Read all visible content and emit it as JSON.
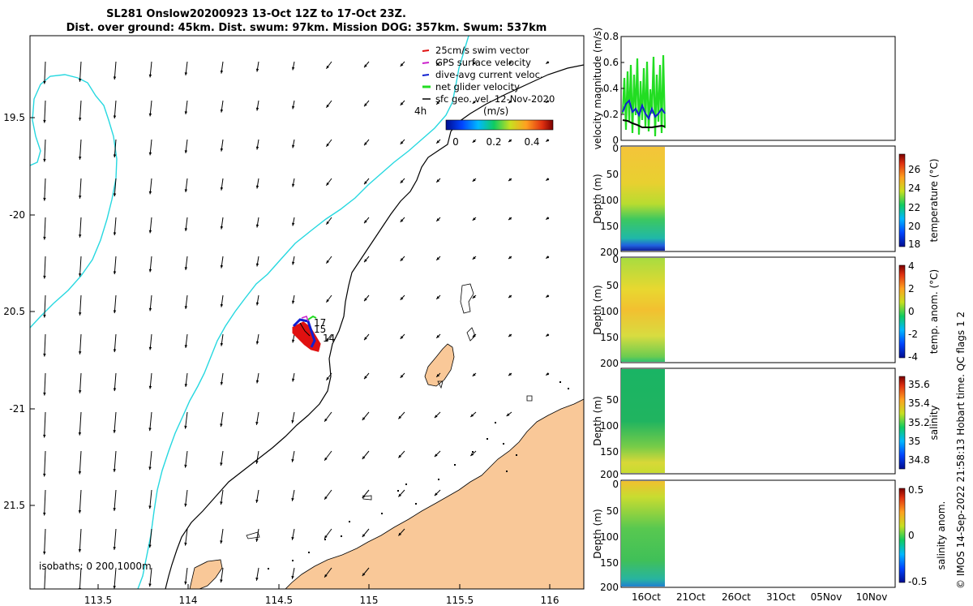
{
  "title": {
    "line1": "SL281 Onslow20200923 13-Oct 12Z to 17-Oct 23Z.",
    "line2": "Dist. over ground: 45km. Dist. swum: 97km. Mission DOG: 357km. Swum: 537km"
  },
  "colors": {
    "land": "#f9c898",
    "isobath0": "#26d8e0",
    "isobath200": "#000000",
    "track_swim": "#e01010",
    "track_gps": "#cc22cc",
    "track_dac": "#1020d0",
    "track_net": "#22dd22",
    "geo_vector": "#000000"
  },
  "map": {
    "lon_ticks": [
      "113.5",
      "114",
      "114.5",
      "115",
      "115.5",
      "116"
    ],
    "lat_ticks": [
      "19.5",
      "-20",
      "20.5",
      "-21",
      "21.5"
    ],
    "legend": [
      {
        "label": "25cm/s swim vector",
        "color": "#e01010"
      },
      {
        "label": "GPS surface velocity",
        "color": "#cc22cc"
      },
      {
        "label": "dive-avg current veloc.",
        "color": "#1020d0"
      },
      {
        "label": "net glider velocity",
        "color": "#22dd22"
      },
      {
        "label": "sfc geo. vel. 12-Nov-2020",
        "color": "#000000"
      }
    ],
    "colorbar": {
      "label": "(m/s)",
      "ticks": [
        "0",
        "0.2",
        "0.4"
      ]
    },
    "interval_label": "4h",
    "isobath_label": "isobaths: 0   200   1000m",
    "track_labels": [
      "17",
      "15",
      "14"
    ]
  },
  "chart_data": [
    {
      "type": "line",
      "title": "",
      "ylabel": "velocity magnitude (m/s)",
      "ylim": [
        0,
        0.8
      ],
      "yticks": [
        "0",
        "0.2",
        "0.4",
        "0.6",
        "0.8"
      ],
      "series": [
        {
          "name": "net glider velocity",
          "color": "#22dd22"
        },
        {
          "name": "dive-avg current veloc.",
          "color": "#1020d0"
        },
        {
          "name": "sfc geo. vel.",
          "color": "#000000"
        }
      ]
    },
    {
      "type": "heatmap",
      "ylabel": "Depth (m)",
      "yticks": [
        "0",
        "50",
        "100",
        "150",
        "200"
      ],
      "colorbar_label": "temperature (°C)",
      "colorbar_ticks": [
        "18",
        "20",
        "22",
        "24",
        "26"
      ],
      "clim": [
        17.5,
        28
      ]
    },
    {
      "type": "heatmap",
      "ylabel": "Depth (m)",
      "yticks": [
        "0",
        "50",
        "100",
        "150",
        "200"
      ],
      "colorbar_label": "temp. anom. (°C)",
      "colorbar_ticks": [
        "-4",
        "-2",
        "0",
        "2",
        "4"
      ],
      "clim": [
        -4,
        4
      ]
    },
    {
      "type": "heatmap",
      "ylabel": "Depth (m)",
      "yticks": [
        "50",
        "100",
        "150",
        "200"
      ],
      "colorbar_label": "salinity",
      "colorbar_ticks": [
        "34.8",
        "35",
        "35.2",
        "35.4",
        "35.6"
      ],
      "clim": [
        34.7,
        35.7
      ]
    },
    {
      "type": "heatmap",
      "ylabel": "Depth (m)",
      "yticks": [
        "0",
        "50",
        "100",
        "150",
        "200"
      ],
      "colorbar_label": "salinity anom.",
      "colorbar_ticks": [
        "-0.5",
        "0",
        "0.5"
      ],
      "clim": [
        -0.5,
        0.5
      ]
    }
  ],
  "time_axis": {
    "ticks": [
      "16Oct",
      "21Oct",
      "26Oct",
      "31Oct",
      "05Nov",
      "10Nov"
    ]
  },
  "footer": "© IMOS 14-Sep-2022 21:58:13 Hobart time. QC flags 1  2"
}
